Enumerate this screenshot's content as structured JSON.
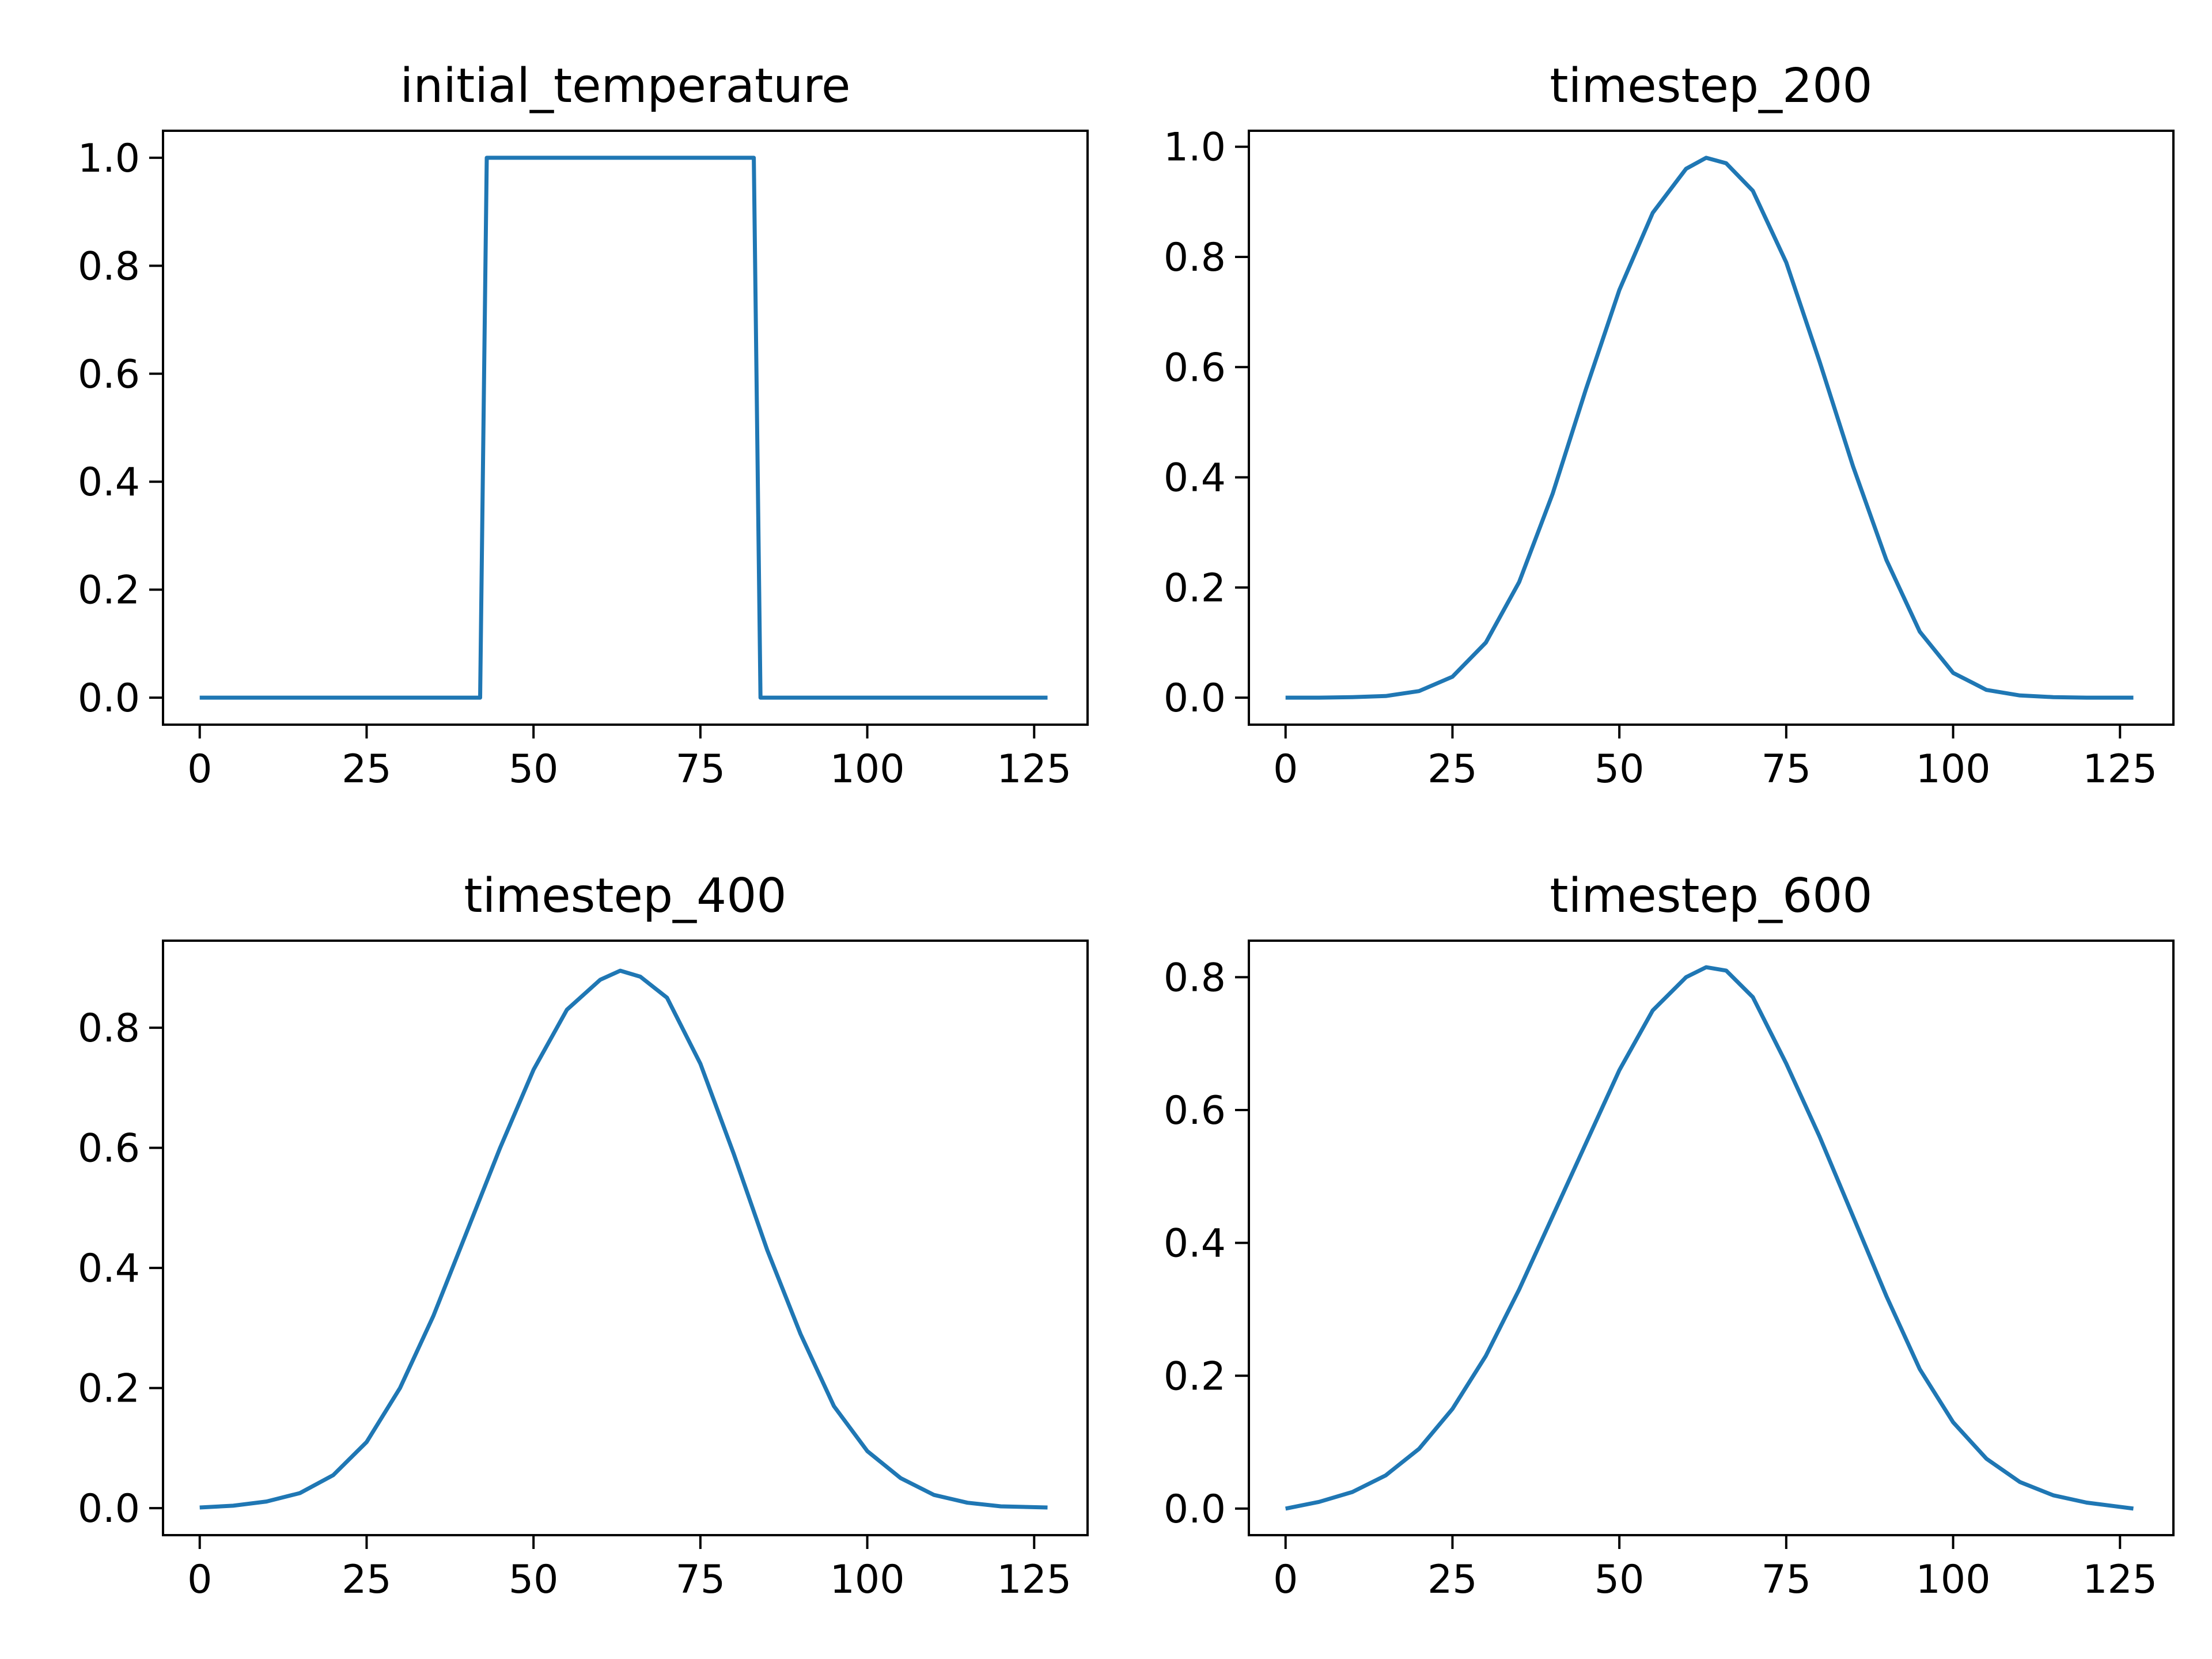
{
  "figure": {
    "line_color": "#1f77b4"
  },
  "chart_data": [
    {
      "type": "line",
      "title": "initial_temperature",
      "xlabel": "",
      "ylabel": "",
      "xlim": [
        -5.5,
        133
      ],
      "ylim": [
        -0.05,
        1.05
      ],
      "xticks": [
        0,
        25,
        50,
        75,
        100,
        125
      ],
      "xtick_labels": [
        "0",
        "25",
        "50",
        "75",
        "100",
        "125"
      ],
      "yticks": [
        0,
        0.2,
        0.4,
        0.6,
        0.8,
        1.0
      ],
      "ytick_labels": [
        "0.0",
        "0.2",
        "0.4",
        "0.6",
        "0.8",
        "1.0"
      ],
      "grid": false,
      "series": [
        {
          "x": [
            0,
            42,
            43,
            83,
            84,
            127
          ],
          "y": [
            0,
            0,
            1,
            1,
            0,
            0
          ]
        }
      ]
    },
    {
      "type": "line",
      "title": "timestep_200",
      "xlabel": "",
      "ylabel": "",
      "xlim": [
        -5.5,
        133
      ],
      "ylim": [
        -0.049,
        1.029
      ],
      "xticks": [
        0,
        25,
        50,
        75,
        100,
        125
      ],
      "xtick_labels": [
        "0",
        "25",
        "50",
        "75",
        "100",
        "125"
      ],
      "yticks": [
        0,
        0.2,
        0.4,
        0.6,
        0.8,
        1.0
      ],
      "ytick_labels": [
        "0.0",
        "0.2",
        "0.4",
        "0.6",
        "0.8",
        "1.0"
      ],
      "grid": false,
      "series": [
        {
          "x": [
            0,
            5,
            10,
            15,
            20,
            25,
            30,
            35,
            40,
            45,
            50,
            55,
            60,
            63,
            66,
            70,
            75,
            80,
            85,
            90,
            95,
            100,
            105,
            110,
            115,
            120,
            127
          ],
          "y": [
            0.0,
            0.0,
            0.001,
            0.003,
            0.012,
            0.038,
            0.1,
            0.21,
            0.37,
            0.56,
            0.74,
            0.88,
            0.96,
            0.98,
            0.97,
            0.92,
            0.79,
            0.61,
            0.42,
            0.25,
            0.12,
            0.045,
            0.014,
            0.004,
            0.001,
            0.0,
            0.0
          ]
        }
      ]
    },
    {
      "type": "line",
      "title": "timestep_400",
      "xlabel": "",
      "ylabel": "",
      "xlim": [
        -5.5,
        133
      ],
      "ylim": [
        -0.045,
        0.945
      ],
      "xticks": [
        0,
        25,
        50,
        75,
        100,
        125
      ],
      "xtick_labels": [
        "0",
        "25",
        "50",
        "75",
        "100",
        "125"
      ],
      "yticks": [
        0,
        0.2,
        0.4,
        0.6,
        0.8
      ],
      "ytick_labels": [
        "0.0",
        "0.2",
        "0.4",
        "0.6",
        "0.8"
      ],
      "grid": false,
      "series": [
        {
          "x": [
            0,
            5,
            10,
            15,
            20,
            25,
            30,
            35,
            40,
            45,
            50,
            55,
            60,
            63,
            66,
            70,
            75,
            80,
            85,
            90,
            95,
            100,
            105,
            110,
            115,
            120,
            127
          ],
          "y": [
            0.001,
            0.004,
            0.011,
            0.025,
            0.055,
            0.11,
            0.2,
            0.32,
            0.46,
            0.6,
            0.73,
            0.83,
            0.88,
            0.895,
            0.885,
            0.85,
            0.74,
            0.59,
            0.43,
            0.29,
            0.17,
            0.095,
            0.05,
            0.022,
            0.009,
            0.003,
            0.001
          ]
        }
      ]
    },
    {
      "type": "line",
      "title": "timestep_600",
      "xlabel": "",
      "ylabel": "",
      "xlim": [
        -5.5,
        133
      ],
      "ylim": [
        -0.04,
        0.855
      ],
      "xticks": [
        0,
        25,
        50,
        75,
        100,
        125
      ],
      "xtick_labels": [
        "0",
        "25",
        "50",
        "75",
        "100",
        "125"
      ],
      "yticks": [
        0,
        0.2,
        0.4,
        0.6,
        0.8
      ],
      "ytick_labels": [
        "0.0",
        "0.2",
        "0.4",
        "0.6",
        "0.8"
      ],
      "grid": false,
      "series": [
        {
          "x": [
            0,
            5,
            10,
            15,
            20,
            25,
            30,
            35,
            40,
            45,
            50,
            55,
            60,
            63,
            66,
            70,
            75,
            80,
            85,
            90,
            95,
            100,
            105,
            110,
            115,
            120,
            127
          ],
          "y": [
            0.0,
            0.01,
            0.025,
            0.05,
            0.09,
            0.15,
            0.23,
            0.33,
            0.44,
            0.55,
            0.66,
            0.75,
            0.8,
            0.815,
            0.81,
            0.77,
            0.67,
            0.56,
            0.44,
            0.32,
            0.21,
            0.13,
            0.075,
            0.04,
            0.02,
            0.009,
            0.0
          ]
        }
      ]
    }
  ]
}
